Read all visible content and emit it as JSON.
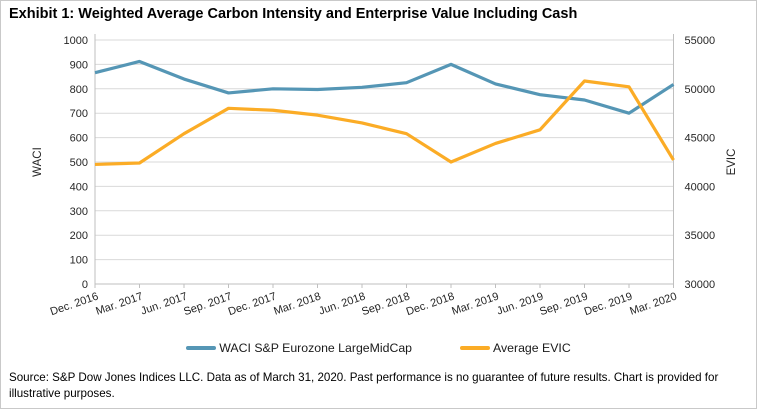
{
  "title": "Exhibit 1: Weighted Average Carbon Intensity and Enterprise Value Including Cash",
  "footer": {
    "source_text": "Source: S&P Dow Jones Indices LLC. Data as of March 31, 2020. Past performance is no guarantee of future results. Chart is provided for illustrative purposes."
  },
  "chart_data": {
    "type": "line",
    "title": "Exhibit 1: Weighted Average Carbon Intensity and Enterprise Value Including Cash",
    "categories": [
      "Dec. 2016",
      "Mar. 2017",
      "Jun. 2017",
      "Sep. 2017",
      "Dec. 2017",
      "Mar. 2018",
      "Jun. 2018",
      "Sep. 2018",
      "Dec. 2018",
      "Mar. 2019",
      "Jun. 2019",
      "Sep. 2019",
      "Dec. 2019",
      "Mar. 2020"
    ],
    "series": [
      {
        "name": "WACI S&P Eurozone LargeMidCap",
        "axis": "left",
        "color": "#5596B5",
        "values": [
          866,
          912,
          840,
          783,
          800,
          797,
          806,
          825,
          900,
          820,
          776,
          754,
          700,
          818
        ]
      },
      {
        "name": "Average EVIC",
        "axis": "right",
        "color": "#FBAC26",
        "values": [
          42250,
          42400,
          45400,
          48000,
          47800,
          47300,
          46500,
          45400,
          42500,
          44400,
          45800,
          50800,
          50200,
          42700
        ]
      }
    ],
    "left_axis": {
      "label": "WACI",
      "range": [
        0,
        1000
      ],
      "step": 100
    },
    "right_axis": {
      "label": "EVIC",
      "range": [
        30000,
        55000
      ],
      "step": 5000
    },
    "grid": "horizontal",
    "legend_position": "bottom",
    "colors": {
      "grid": "#d9d9d9",
      "axis": "#bfbfbf",
      "tick_text": "#262626"
    }
  }
}
